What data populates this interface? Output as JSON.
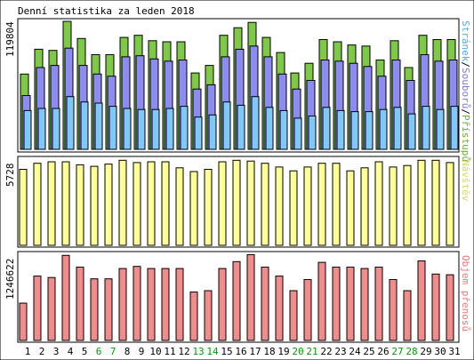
{
  "title": "Denní statistika za leden 2018",
  "chart_data": [
    {
      "type": "bar",
      "panel": "hits-files-pages",
      "ymax_label": "119804",
      "ylim": [
        0,
        119804
      ],
      "legend_parts": [
        "Stránek",
        "/",
        "Souborů",
        "/",
        "Přístupů"
      ],
      "categories": [
        "1",
        "2",
        "3",
        "4",
        "5",
        "6",
        "7",
        "8",
        "9",
        "10",
        "11",
        "12",
        "13",
        "14",
        "15",
        "16",
        "17",
        "18",
        "19",
        "20",
        "21",
        "22",
        "23",
        "24",
        "25",
        "26",
        "27",
        "28",
        "29",
        "30",
        "31"
      ],
      "series": [
        {
          "name": "Přístupů",
          "values": [
            70000,
            93000,
            92000,
            119000,
            103000,
            88000,
            88000,
            104000,
            106000,
            101000,
            100000,
            100000,
            71000,
            78000,
            106000,
            113000,
            118000,
            104000,
            90000,
            71000,
            80000,
            102000,
            100000,
            97000,
            96000,
            83000,
            101000,
            76000,
            106000,
            102000,
            102000
          ]
        },
        {
          "name": "Souborů",
          "values": [
            50000,
            76000,
            78000,
            94000,
            78000,
            70000,
            68000,
            86000,
            87000,
            84000,
            82000,
            83000,
            56000,
            60000,
            86000,
            93000,
            96000,
            86000,
            70000,
            56000,
            64000,
            83000,
            82000,
            80000,
            77000,
            68000,
            83000,
            64000,
            88000,
            82000,
            83000
          ]
        },
        {
          "name": "Stránek",
          "values": [
            36000,
            38000,
            38000,
            49000,
            44000,
            43000,
            40000,
            38000,
            37000,
            37000,
            38000,
            40000,
            30000,
            32000,
            44000,
            41000,
            49000,
            39000,
            36000,
            29000,
            31000,
            39000,
            36000,
            35000,
            35000,
            37000,
            39000,
            33000,
            40000,
            37000,
            40000
          ]
        }
      ]
    },
    {
      "type": "bar",
      "panel": "visits",
      "ymax_label": "5728",
      "ylim": [
        0,
        5728
      ],
      "legend": "Návštěv",
      "categories": [
        "1",
        "2",
        "3",
        "4",
        "5",
        "6",
        "7",
        "8",
        "9",
        "10",
        "11",
        "12",
        "13",
        "14",
        "15",
        "16",
        "17",
        "18",
        "19",
        "20",
        "21",
        "22",
        "23",
        "24",
        "25",
        "26",
        "27",
        "28",
        "29",
        "30",
        "31"
      ],
      "series": [
        {
          "name": "Návštěv",
          "values": [
            5050,
            5450,
            5550,
            5550,
            5350,
            5250,
            5400,
            5650,
            5500,
            5550,
            5550,
            5150,
            4900,
            5050,
            5550,
            5650,
            5600,
            5450,
            5200,
            4950,
            5200,
            5450,
            5450,
            4950,
            5150,
            5550,
            5200,
            5300,
            5650,
            5650,
            5500
          ]
        }
      ]
    },
    {
      "type": "bar",
      "panel": "volume",
      "ymax_label": "1246622",
      "ylim": [
        0,
        1246622
      ],
      "legend": "Objem přenosů",
      "categories": [
        "1",
        "2",
        "3",
        "4",
        "5",
        "6",
        "7",
        "8",
        "9",
        "10",
        "11",
        "12",
        "13",
        "14",
        "15",
        "16",
        "17",
        "18",
        "19",
        "20",
        "21",
        "22",
        "23",
        "24",
        "25",
        "26",
        "27",
        "28",
        "29",
        "30",
        "31"
      ],
      "series": [
        {
          "name": "Objem přenosů",
          "values": [
            540000,
            930000,
            910000,
            1230000,
            1060000,
            890000,
            890000,
            1040000,
            1070000,
            1040000,
            1040000,
            1040000,
            700000,
            720000,
            1040000,
            1140000,
            1240000,
            1060000,
            930000,
            720000,
            880000,
            1130000,
            1060000,
            1060000,
            1040000,
            1060000,
            880000,
            720000,
            1150000,
            960000,
            950000
          ]
        }
      ]
    }
  ],
  "x_labels": {
    "weekday_color": "#000000",
    "weekend_color": "#00a000",
    "weekend_days": [
      "6",
      "7",
      "13",
      "14",
      "20",
      "21",
      "27",
      "28"
    ]
  },
  "colors": {
    "hits": "#7fc84a",
    "files": "#8c8cf0",
    "pages": "#7fc8f8",
    "visits": "#ffff99",
    "volume": "#f08c8c",
    "legend_hits": "#66b032",
    "legend_files": "#7a7ae0",
    "legend_pages": "#4aaeea",
    "legend_visits": "#d8d860",
    "legend_volume": "#f07878"
  }
}
